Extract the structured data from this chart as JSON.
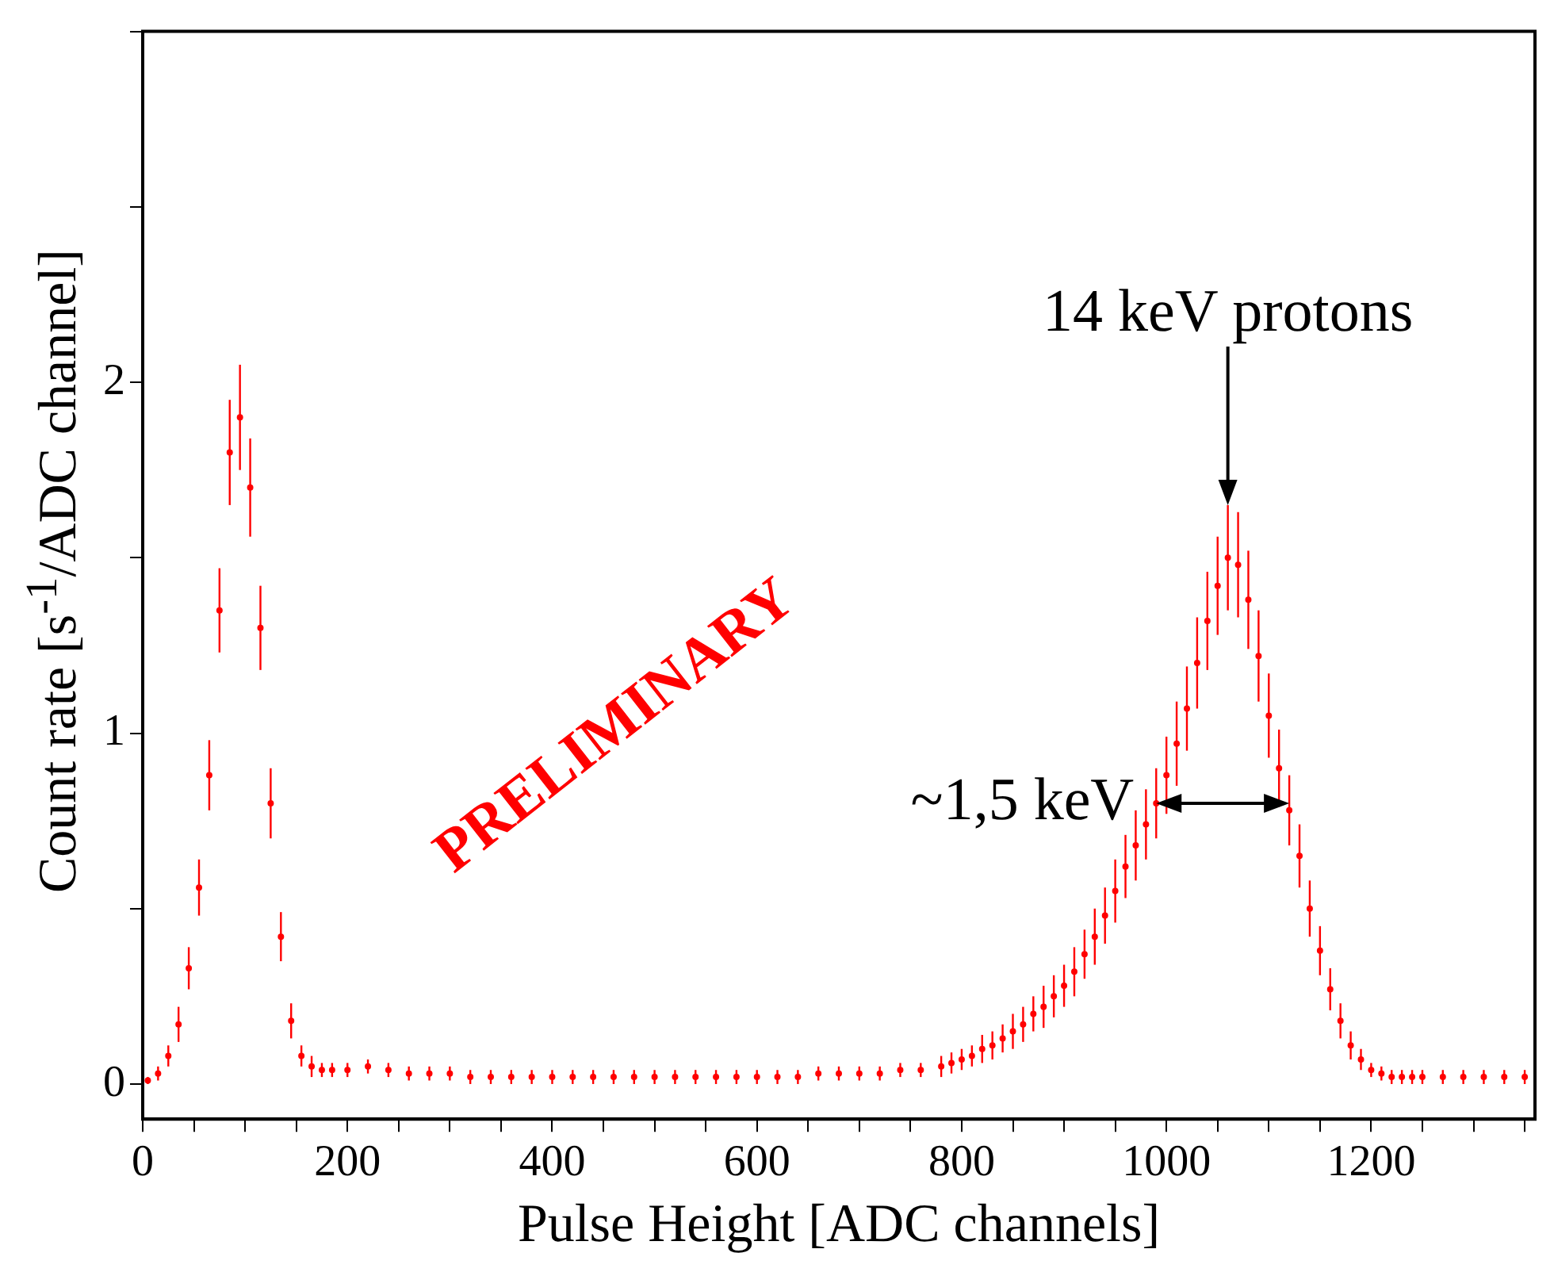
{
  "chart_data": {
    "type": "scatter",
    "xlabel": "Pulse Height [ADC channels]",
    "ylabel": "Count rate [s$^{-1}$/ADC channel]",
    "xlim": [
      0,
      1360
    ],
    "ylim": [
      -0.1,
      3
    ],
    "xticks": [
      0,
      {
        "value": 50,
        "label": null
      },
      {
        "value": 100,
        "label": null
      },
      {
        "value": 150,
        "label": null
      },
      200,
      {
        "value": 250,
        "label": null
      },
      {
        "value": 300,
        "label": null
      },
      {
        "value": 350,
        "label": null
      },
      400,
      {
        "value": 450,
        "label": null
      },
      {
        "value": 500,
        "label": null
      },
      {
        "value": 550,
        "label": null
      },
      600,
      {
        "value": 650,
        "label": null
      },
      {
        "value": 700,
        "label": null
      },
      {
        "value": 750,
        "label": null
      },
      800,
      {
        "value": 850,
        "label": null
      },
      {
        "value": 900,
        "label": null
      },
      {
        "value": 950,
        "label": null
      },
      1000,
      {
        "value": 1050,
        "label": null
      },
      {
        "value": 1100,
        "label": null
      },
      {
        "value": 1150,
        "label": null
      },
      1200,
      {
        "value": 1250,
        "label": null
      },
      {
        "value": 1300,
        "label": null
      },
      {
        "value": 1350,
        "label": null
      }
    ],
    "yticks": [
      0,
      {
        "value": 0.5,
        "label": null
      },
      1,
      {
        "value": 1.5,
        "label": null
      },
      2,
      {
        "value": 2.5,
        "label": null
      },
      {
        "value": 3,
        "label": null
      }
    ],
    "grid": false,
    "legend": false,
    "marker": "circle",
    "series": [
      {
        "color": "#ff0000",
        "x": [
          5,
          15,
          25,
          35,
          45,
          55,
          65,
          75,
          85,
          95,
          105,
          115,
          125,
          135,
          145,
          155,
          165,
          175,
          185,
          200,
          220,
          240,
          260,
          280,
          300,
          320,
          340,
          360,
          380,
          400,
          420,
          440,
          460,
          480,
          500,
          520,
          540,
          560,
          580,
          600,
          620,
          640,
          660,
          680,
          700,
          720,
          740,
          760,
          780,
          790,
          800,
          810,
          820,
          830,
          840,
          850,
          860,
          870,
          880,
          890,
          900,
          910,
          920,
          930,
          940,
          950,
          960,
          970,
          980,
          990,
          1000,
          1010,
          1020,
          1030,
          1040,
          1050,
          1060,
          1070,
          1080,
          1090,
          1100,
          1110,
          1120,
          1130,
          1140,
          1150,
          1160,
          1170,
          1180,
          1190,
          1200,
          1210,
          1220,
          1230,
          1240,
          1250,
          1270,
          1290,
          1310,
          1330,
          1350
        ],
        "values": [
          0.01,
          0.03,
          0.08,
          0.17,
          0.33,
          0.56,
          0.88,
          1.35,
          1.8,
          1.9,
          1.7,
          1.3,
          0.8,
          0.42,
          0.18,
          0.08,
          0.05,
          0.04,
          0.04,
          0.04,
          0.05,
          0.04,
          0.03,
          0.03,
          0.03,
          0.02,
          0.02,
          0.02,
          0.02,
          0.02,
          0.02,
          0.02,
          0.02,
          0.02,
          0.02,
          0.02,
          0.02,
          0.02,
          0.02,
          0.02,
          0.02,
          0.02,
          0.03,
          0.03,
          0.03,
          0.03,
          0.04,
          0.04,
          0.05,
          0.06,
          0.07,
          0.08,
          0.1,
          0.11,
          0.13,
          0.15,
          0.17,
          0.2,
          0.22,
          0.25,
          0.28,
          0.32,
          0.37,
          0.42,
          0.48,
          0.55,
          0.62,
          0.68,
          0.74,
          0.8,
          0.88,
          0.97,
          1.07,
          1.2,
          1.32,
          1.42,
          1.5,
          1.48,
          1.38,
          1.22,
          1.05,
          0.9,
          0.78,
          0.65,
          0.5,
          0.38,
          0.27,
          0.18,
          0.11,
          0.07,
          0.04,
          0.03,
          0.02,
          0.02,
          0.02,
          0.02,
          0.02,
          0.02,
          0.02,
          0.02,
          0.02
        ],
        "errors": [
          0.01,
          0.02,
          0.03,
          0.05,
          0.06,
          0.08,
          0.1,
          0.12,
          0.15,
          0.15,
          0.14,
          0.12,
          0.1,
          0.07,
          0.05,
          0.03,
          0.03,
          0.02,
          0.02,
          0.02,
          0.02,
          0.02,
          0.02,
          0.02,
          0.02,
          0.02,
          0.02,
          0.02,
          0.02,
          0.02,
          0.02,
          0.02,
          0.02,
          0.02,
          0.02,
          0.02,
          0.02,
          0.02,
          0.02,
          0.02,
          0.02,
          0.02,
          0.02,
          0.02,
          0.02,
          0.02,
          0.02,
          0.02,
          0.03,
          0.03,
          0.03,
          0.03,
          0.04,
          0.04,
          0.04,
          0.05,
          0.05,
          0.05,
          0.06,
          0.06,
          0.06,
          0.07,
          0.07,
          0.08,
          0.08,
          0.09,
          0.09,
          0.1,
          0.1,
          0.1,
          0.11,
          0.12,
          0.12,
          0.13,
          0.14,
          0.14,
          0.15,
          0.15,
          0.14,
          0.13,
          0.12,
          0.11,
          0.1,
          0.09,
          0.08,
          0.07,
          0.06,
          0.05,
          0.04,
          0.03,
          0.02,
          0.02,
          0.02,
          0.02,
          0.02,
          0.02,
          0.02,
          0.02,
          0.02,
          0.02,
          0.02
        ]
      }
    ],
    "annotations": [
      {
        "text": "14 keV protons",
        "x": 1060,
        "y": 1.65
      },
      {
        "text": "~1,5 keV",
        "x": 990,
        "y": 0.8
      },
      "PRELIMINARY"
    ]
  }
}
